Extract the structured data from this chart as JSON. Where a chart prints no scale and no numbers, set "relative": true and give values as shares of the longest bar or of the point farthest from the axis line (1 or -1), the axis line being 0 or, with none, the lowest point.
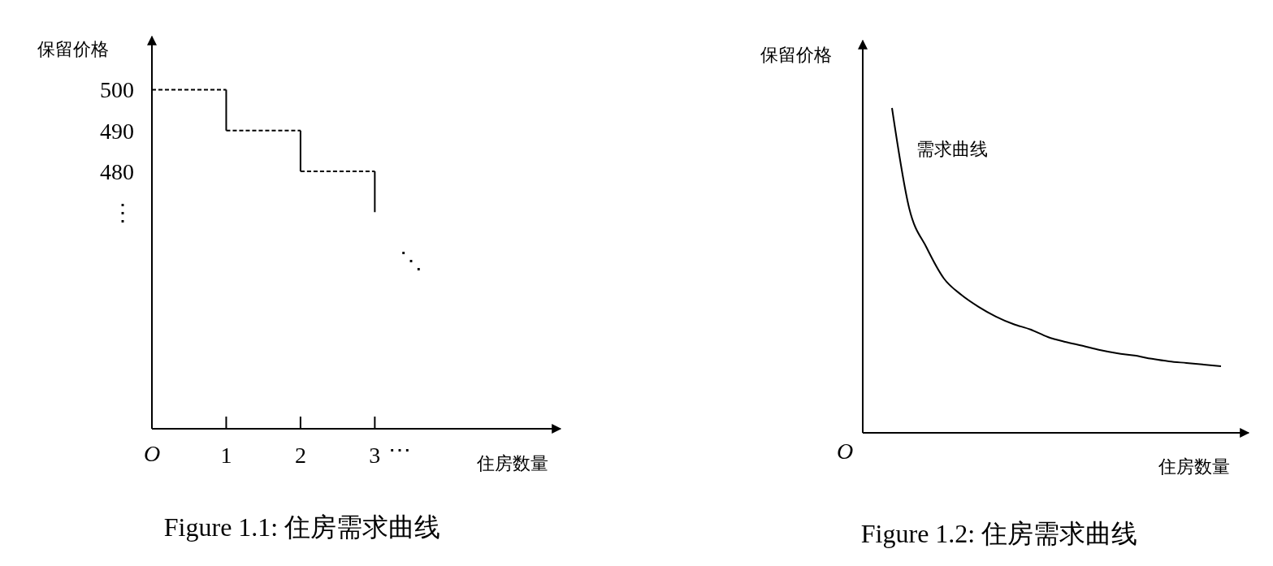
{
  "chart_data": [
    {
      "type": "line",
      "title": "Figure 1.1: 住房需求曲线",
      "xlabel": "住房数量",
      "ylabel": "保留价格",
      "xlim": [
        0,
        5.5
      ],
      "xticks": [
        {
          "value": 0,
          "label": "O"
        },
        1,
        2,
        3
      ],
      "ylim": [
        417,
        513
      ],
      "yticks": [
        500,
        490,
        480,
        {
          "value": 470,
          "label": "⋮"
        }
      ],
      "annotations": [
        "⋯",
        "⋱"
      ],
      "series": [
        {
          "type": "step",
          "color": "#000000",
          "line_style": "dashed",
          "x": [
            0,
            1,
            2,
            3
          ],
          "values": [
            500,
            490,
            480,
            470
          ]
        }
      ]
    },
    {
      "type": "line",
      "relative": true,
      "title": "Figure 1.2: 住房需求曲线",
      "xlabel": "住房数量",
      "ylabel": "保留价格",
      "annotations": [
        "O",
        "需求曲线"
      ],
      "categories": [
        null,
        null,
        null,
        null,
        null,
        null,
        null,
        null,
        null,
        null,
        null,
        null,
        null,
        null,
        null,
        null,
        null,
        null,
        null,
        null
      ],
      "series": [
        {
          "color": "#000000",
          "values": [
            1,
            0.69,
            0.57,
            0.475,
            0.425,
            0.388,
            0.358,
            0.335,
            0.318,
            0.295,
            0.28,
            0.268,
            0.255,
            0.245,
            0.238,
            0.228,
            0.22,
            0.215,
            0.21,
            0.205
          ]
        }
      ]
    }
  ]
}
